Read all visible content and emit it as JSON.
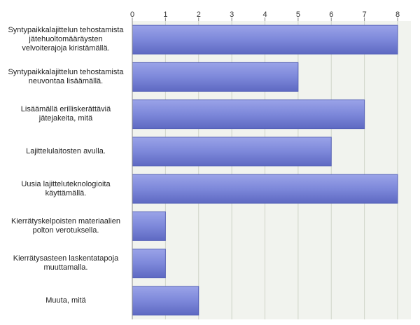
{
  "chart_data": {
    "type": "bar",
    "orientation": "horizontal",
    "title": "",
    "xlabel": "",
    "ylabel": "",
    "xlim": [
      0,
      8
    ],
    "ticks": [
      "0",
      "1",
      "2",
      "3",
      "4",
      "5",
      "6",
      "7",
      "8"
    ],
    "categories": [
      [
        "Syntypaikkalajittelun tehostamista",
        "jätehuoltomääräysten",
        "velvoiterajoja kiristämällä."
      ],
      [
        "Syntypaikkalajittelun tehostamista",
        "neuvontaa lisäämällä."
      ],
      [
        "Lisäämällä erilliskerättäviä",
        "jätejakeita, mitä"
      ],
      [
        "Lajittelulaitosten avulla."
      ],
      [
        "Uusia lajitteluteknologioita",
        "käyttämällä."
      ],
      [
        "Kierrätyskelpoisten materiaalien",
        "polton verotuksella."
      ],
      [
        "Kierrätysasteen laskentatapoja",
        "muuttamalla."
      ],
      [
        "Muuta, mitä"
      ]
    ],
    "values": [
      8,
      5,
      7,
      6,
      8,
      1,
      1,
      2
    ],
    "grid": true,
    "legend": "none",
    "colors": {
      "bar": "#7f8bdc",
      "bar_dark": "#5561b8",
      "plot_bg": "#f1f3ee",
      "grid": "#cfd4c8"
    }
  }
}
